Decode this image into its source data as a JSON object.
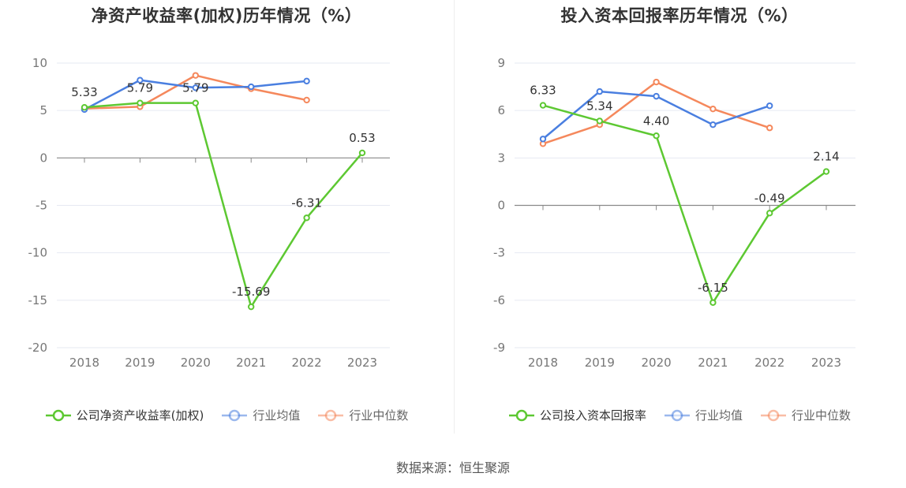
{
  "chart_data": [
    {
      "type": "line",
      "title": "净资产收益率(加权)历年情况（%）",
      "categories": [
        "2018",
        "2019",
        "2020",
        "2021",
        "2022",
        "2023"
      ],
      "ylim": [
        -20,
        10
      ],
      "yticks": [
        10,
        5,
        0,
        -5,
        -10,
        -15,
        -20
      ],
      "series": [
        {
          "name": "公司净资产收益率(加权)",
          "color": "#5dc832",
          "values": [
            5.33,
            5.79,
            5.79,
            -15.69,
            -6.31,
            0.53
          ],
          "labels": [
            "5.33",
            "5.79",
            "5.79",
            "-15.69",
            "-6.31",
            "0.53"
          ]
        },
        {
          "name": "行业均值",
          "color": "#4a7fe0",
          "values": [
            5.1,
            8.2,
            7.4,
            7.5,
            8.1,
            null
          ]
        },
        {
          "name": "行业中位数",
          "color": "#f5885c",
          "values": [
            5.2,
            5.4,
            8.7,
            7.3,
            6.1,
            null
          ]
        }
      ]
    },
    {
      "type": "line",
      "title": "投入资本回报率历年情况（%）",
      "categories": [
        "2018",
        "2019",
        "2020",
        "2021",
        "2022",
        "2023"
      ],
      "ylim": [
        -9,
        9
      ],
      "yticks": [
        9,
        6,
        3,
        0,
        -3,
        -6,
        -9
      ],
      "series": [
        {
          "name": "公司投入资本回报率",
          "color": "#5dc832",
          "values": [
            6.33,
            5.34,
            4.4,
            -6.15,
            -0.49,
            2.14
          ],
          "labels": [
            "6.33",
            "5.34",
            "4.40",
            "-6.15",
            "-0.49",
            "2.14"
          ]
        },
        {
          "name": "行业均值",
          "color": "#4a7fe0",
          "values": [
            4.2,
            7.2,
            6.9,
            5.1,
            6.3,
            null
          ]
        },
        {
          "name": "行业中位数",
          "color": "#f5885c",
          "values": [
            3.9,
            5.1,
            7.8,
            6.1,
            4.9,
            null
          ]
        }
      ]
    }
  ],
  "source": "数据来源：恒生聚源"
}
